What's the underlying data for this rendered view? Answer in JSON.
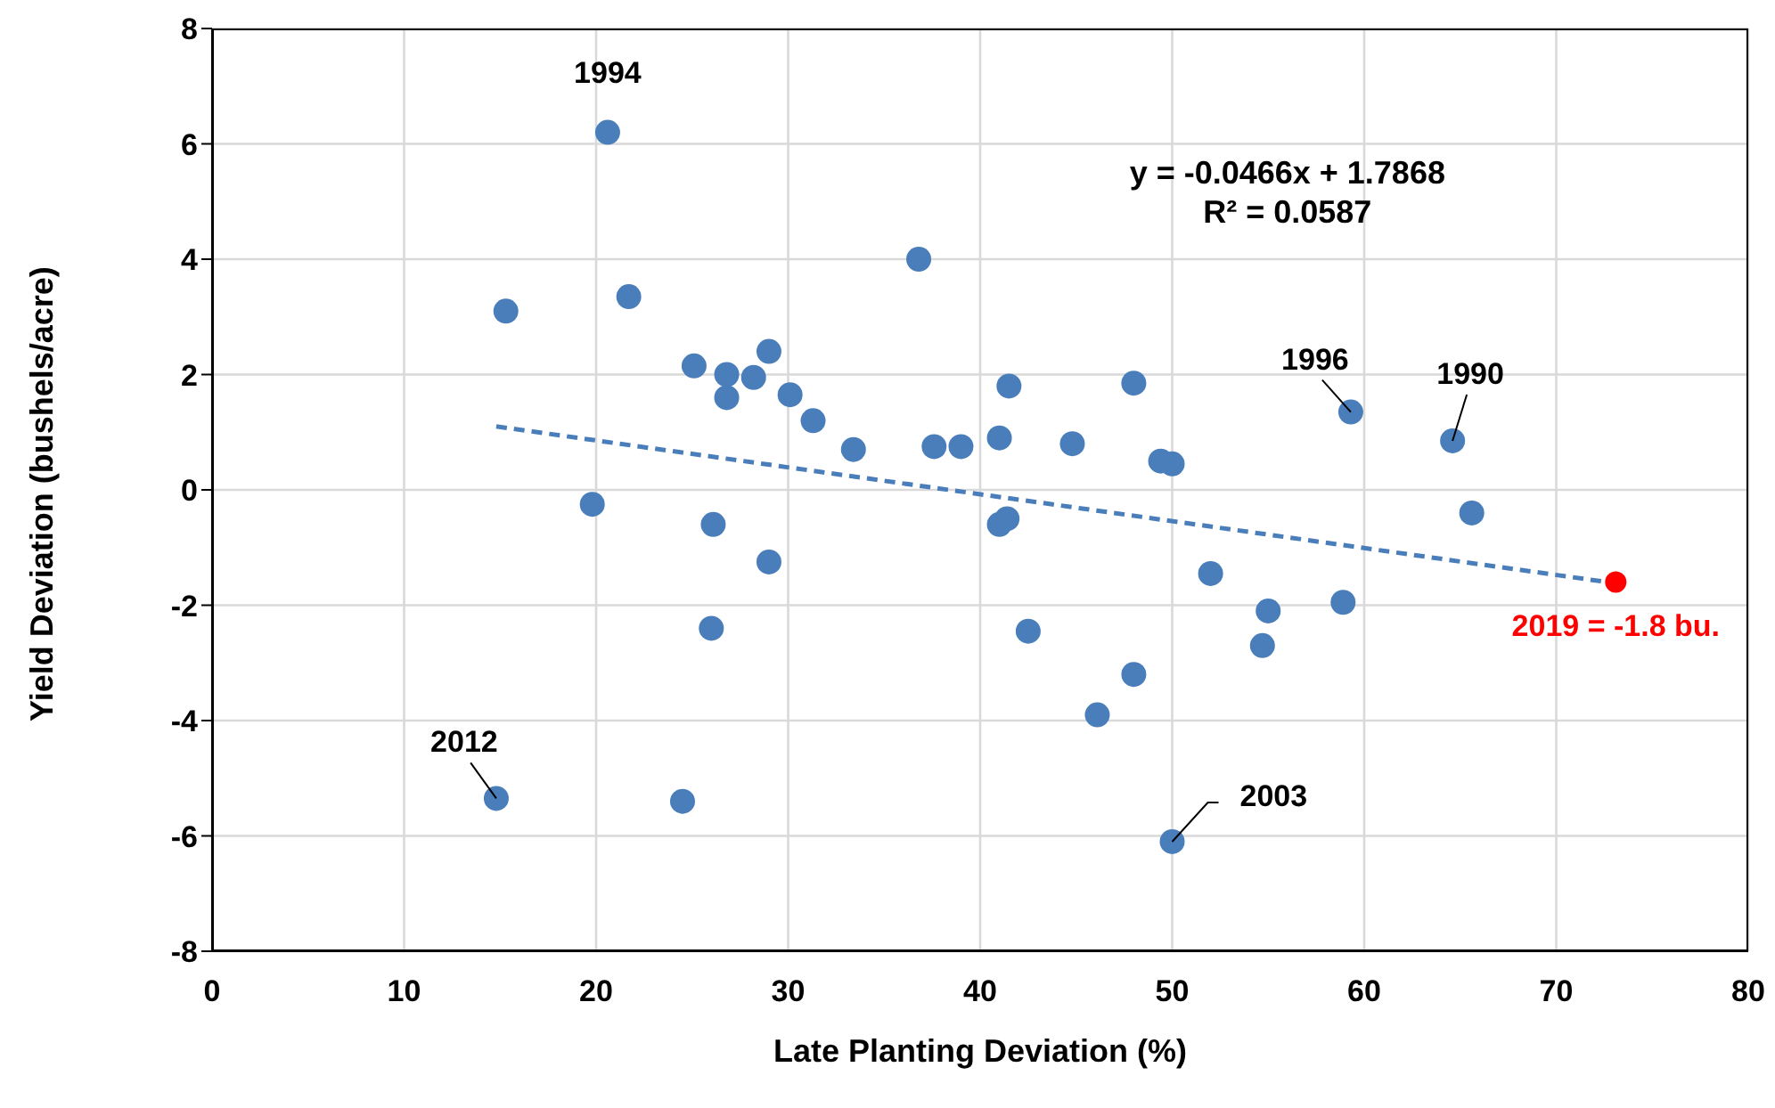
{
  "chart_data": {
    "type": "scatter",
    "xlabel": "Late Planting Deviation (%)",
    "ylabel": "Yield Deviation (bushels/acre)",
    "xlim": [
      0,
      80
    ],
    "xticks": [
      0,
      10,
      20,
      30,
      40,
      50,
      60,
      70,
      80
    ],
    "ylim": [
      -8,
      8
    ],
    "yticks": [
      -8,
      -6,
      -4,
      -2,
      0,
      2,
      4,
      6,
      8
    ],
    "grid": true,
    "marker": "circle",
    "series": [
      {
        "color": "#4a7ebb",
        "x": [
          15.3,
          20.6,
          21.7,
          19.8,
          14.8,
          24.5,
          25.1,
          26.1,
          26.0,
          26.8,
          26.8,
          28.2,
          29.0,
          29.0,
          30.1,
          31.3,
          33.4,
          36.8,
          37.6,
          39.0,
          41.0,
          41.0,
          41.4,
          41.5,
          42.5,
          44.8,
          46.1,
          48.0,
          48.0,
          49.4,
          50.0,
          50.0,
          52.0,
          54.7,
          55.0,
          58.9,
          59.3,
          64.6,
          65.6
        ],
        "values": [
          3.1,
          6.2,
          3.35,
          -0.25,
          -5.35,
          -5.4,
          2.15,
          -0.6,
          -2.4,
          2.0,
          1.6,
          1.95,
          2.4,
          -1.25,
          1.65,
          1.2,
          0.7,
          4.0,
          0.75,
          0.75,
          0.9,
          -0.6,
          -0.5,
          1.8,
          -2.45,
          0.8,
          -3.9,
          1.85,
          -3.2,
          0.5,
          0.45,
          -6.1,
          -1.45,
          -2.7,
          -2.1,
          -1.95,
          1.35,
          0.85,
          -0.4
        ]
      },
      {
        "type": "line",
        "color": "#4a7ebb",
        "line_style": "dashed",
        "marker": "none",
        "x": [
          14.8,
          73.1
        ],
        "values": [
          1.1,
          -1.62
        ]
      },
      {
        "color": "#ff0000",
        "x": [
          73.1
        ],
        "values": [
          -1.6
        ]
      }
    ],
    "annotations": [
      {
        "text": "1994",
        "x": 20.6,
        "y": 6.2
      },
      {
        "text": "2012",
        "x": 14.8,
        "y": -5.35
      },
      {
        "text": "2003",
        "x": 50.0,
        "y": -6.1
      },
      {
        "text": "1996",
        "x": 59.3,
        "y": 1.35
      },
      {
        "text": "1990",
        "x": 64.6,
        "y": 0.85
      },
      {
        "text": "2019 = -1.8 bu.",
        "x": 73.1,
        "y": -1.6
      },
      "y = -0.0466x + 1.7868",
      "R² = 0.0587"
    ]
  }
}
